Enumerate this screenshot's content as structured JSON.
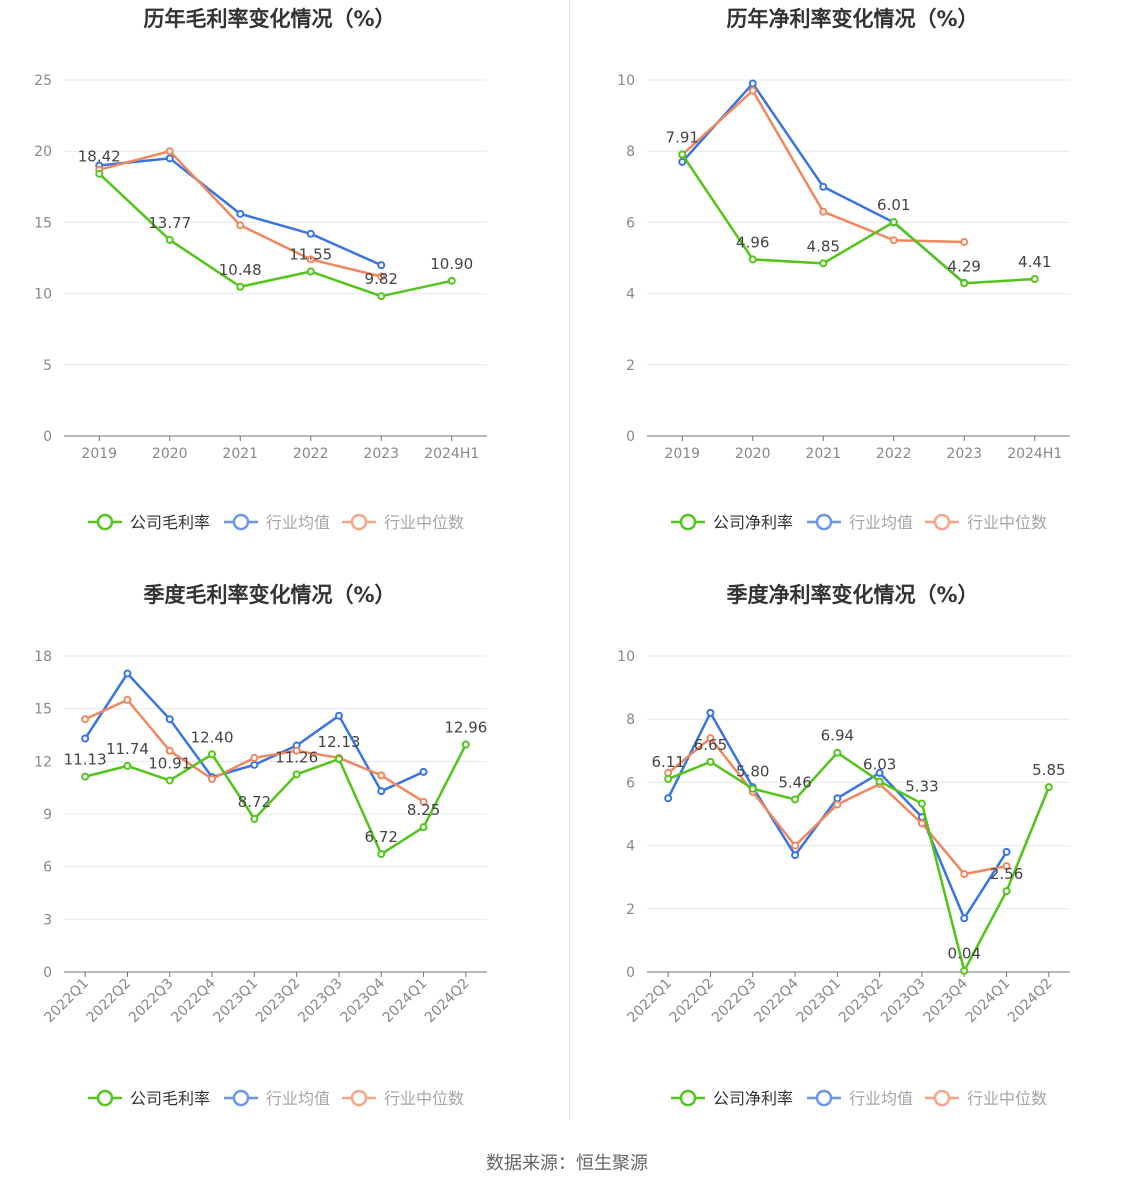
{
  "source": "数据来源：恒生聚源",
  "colors": {
    "company": "#52c41a",
    "avg": "#3a74e0",
    "median": "#f0875f"
  },
  "chart_data": [
    {
      "id": "annual-gross",
      "type": "line",
      "title": "历年毛利率变化情况（%）",
      "categories": [
        "2019",
        "2020",
        "2021",
        "2022",
        "2023",
        "2024H1"
      ],
      "ylim": [
        0,
        25
      ],
      "yticks": [
        0,
        5,
        10,
        15,
        20,
        25
      ],
      "grid": true,
      "legend_position": "bottom",
      "series": [
        {
          "name": "公司毛利率",
          "key": "company",
          "values": [
            18.42,
            13.77,
            10.48,
            11.55,
            9.82,
            10.9
          ],
          "labels": [
            "18.42",
            "13.77",
            "10.48",
            "11.55",
            "9.82",
            "10.90"
          ]
        },
        {
          "name": "行业均值",
          "key": "avg",
          "values": [
            19.0,
            19.5,
            15.6,
            14.2,
            12.0,
            null
          ]
        },
        {
          "name": "行业中位数",
          "key": "median",
          "values": [
            18.7,
            20.0,
            14.8,
            12.4,
            11.2,
            null
          ]
        }
      ]
    },
    {
      "id": "annual-net",
      "type": "line",
      "title": "历年净利率变化情况（%）",
      "categories": [
        "2019",
        "2020",
        "2021",
        "2022",
        "2023",
        "2024H1"
      ],
      "ylim": [
        0,
        10
      ],
      "yticks": [
        0,
        2,
        4,
        6,
        8,
        10
      ],
      "grid": true,
      "legend_position": "bottom",
      "series": [
        {
          "name": "公司净利率",
          "key": "company",
          "values": [
            7.91,
            4.96,
            4.85,
            6.01,
            4.29,
            4.41
          ],
          "labels": [
            "7.91",
            "4.96",
            "4.85",
            "6.01",
            "4.29",
            "4.41"
          ]
        },
        {
          "name": "行业均值",
          "key": "avg",
          "values": [
            7.7,
            9.9,
            7.0,
            6.0,
            4.3,
            null
          ]
        },
        {
          "name": "行业中位数",
          "key": "median",
          "values": [
            7.9,
            9.7,
            6.3,
            5.5,
            5.45,
            null
          ]
        }
      ]
    },
    {
      "id": "quarter-gross",
      "type": "line",
      "title": "季度毛利率变化情况（%）",
      "categories": [
        "2022Q1",
        "2022Q2",
        "2022Q3",
        "2022Q4",
        "2023Q1",
        "2023Q2",
        "2023Q3",
        "2023Q4",
        "2024Q1",
        "2024Q2"
      ],
      "ylim": [
        0,
        18
      ],
      "yticks": [
        0,
        3,
        6,
        9,
        12,
        15,
        18
      ],
      "grid": true,
      "legend_position": "bottom",
      "series": [
        {
          "name": "公司毛利率",
          "key": "company",
          "values": [
            11.13,
            11.74,
            10.91,
            12.4,
            8.72,
            11.26,
            12.13,
            6.72,
            8.25,
            12.96
          ],
          "labels": [
            "11.13",
            "11.74",
            "10.91",
            "12.40",
            "8.72",
            "11.26",
            "12.13",
            "6.72",
            "8.25",
            "12.96"
          ]
        },
        {
          "name": "行业均值",
          "key": "avg",
          "values": [
            13.3,
            17.0,
            14.4,
            11.1,
            11.8,
            12.9,
            14.6,
            10.3,
            11.4,
            null
          ]
        },
        {
          "name": "行业中位数",
          "key": "median",
          "values": [
            14.4,
            15.5,
            12.6,
            11.0,
            12.2,
            12.6,
            12.2,
            11.2,
            9.7,
            null
          ]
        }
      ]
    },
    {
      "id": "quarter-net",
      "type": "line",
      "title": "季度净利率变化情况（%）",
      "categories": [
        "2022Q1",
        "2022Q2",
        "2022Q3",
        "2022Q4",
        "2023Q1",
        "2023Q2",
        "2023Q3",
        "2023Q4",
        "2024Q1",
        "2024Q2"
      ],
      "ylim": [
        0,
        10
      ],
      "yticks": [
        0,
        2,
        4,
        6,
        8,
        10
      ],
      "grid": true,
      "legend_position": "bottom",
      "series": [
        {
          "name": "公司净利率",
          "key": "company",
          "values": [
            6.11,
            6.65,
            5.8,
            5.46,
            6.94,
            6.03,
            5.33,
            0.04,
            2.56,
            5.85
          ],
          "labels": [
            "6.11",
            "6.65",
            "5.80",
            "5.46",
            "6.94",
            "6.03",
            "5.33",
            "0.04",
            "2.56",
            "5.85"
          ]
        },
        {
          "name": "行业均值",
          "key": "avg",
          "values": [
            5.5,
            8.2,
            5.85,
            3.7,
            5.5,
            6.3,
            4.9,
            1.7,
            3.8,
            null
          ]
        },
        {
          "name": "行业中位数",
          "key": "median",
          "values": [
            6.3,
            7.4,
            5.7,
            4.0,
            5.3,
            5.95,
            4.7,
            3.1,
            3.35,
            null
          ]
        }
      ]
    }
  ]
}
